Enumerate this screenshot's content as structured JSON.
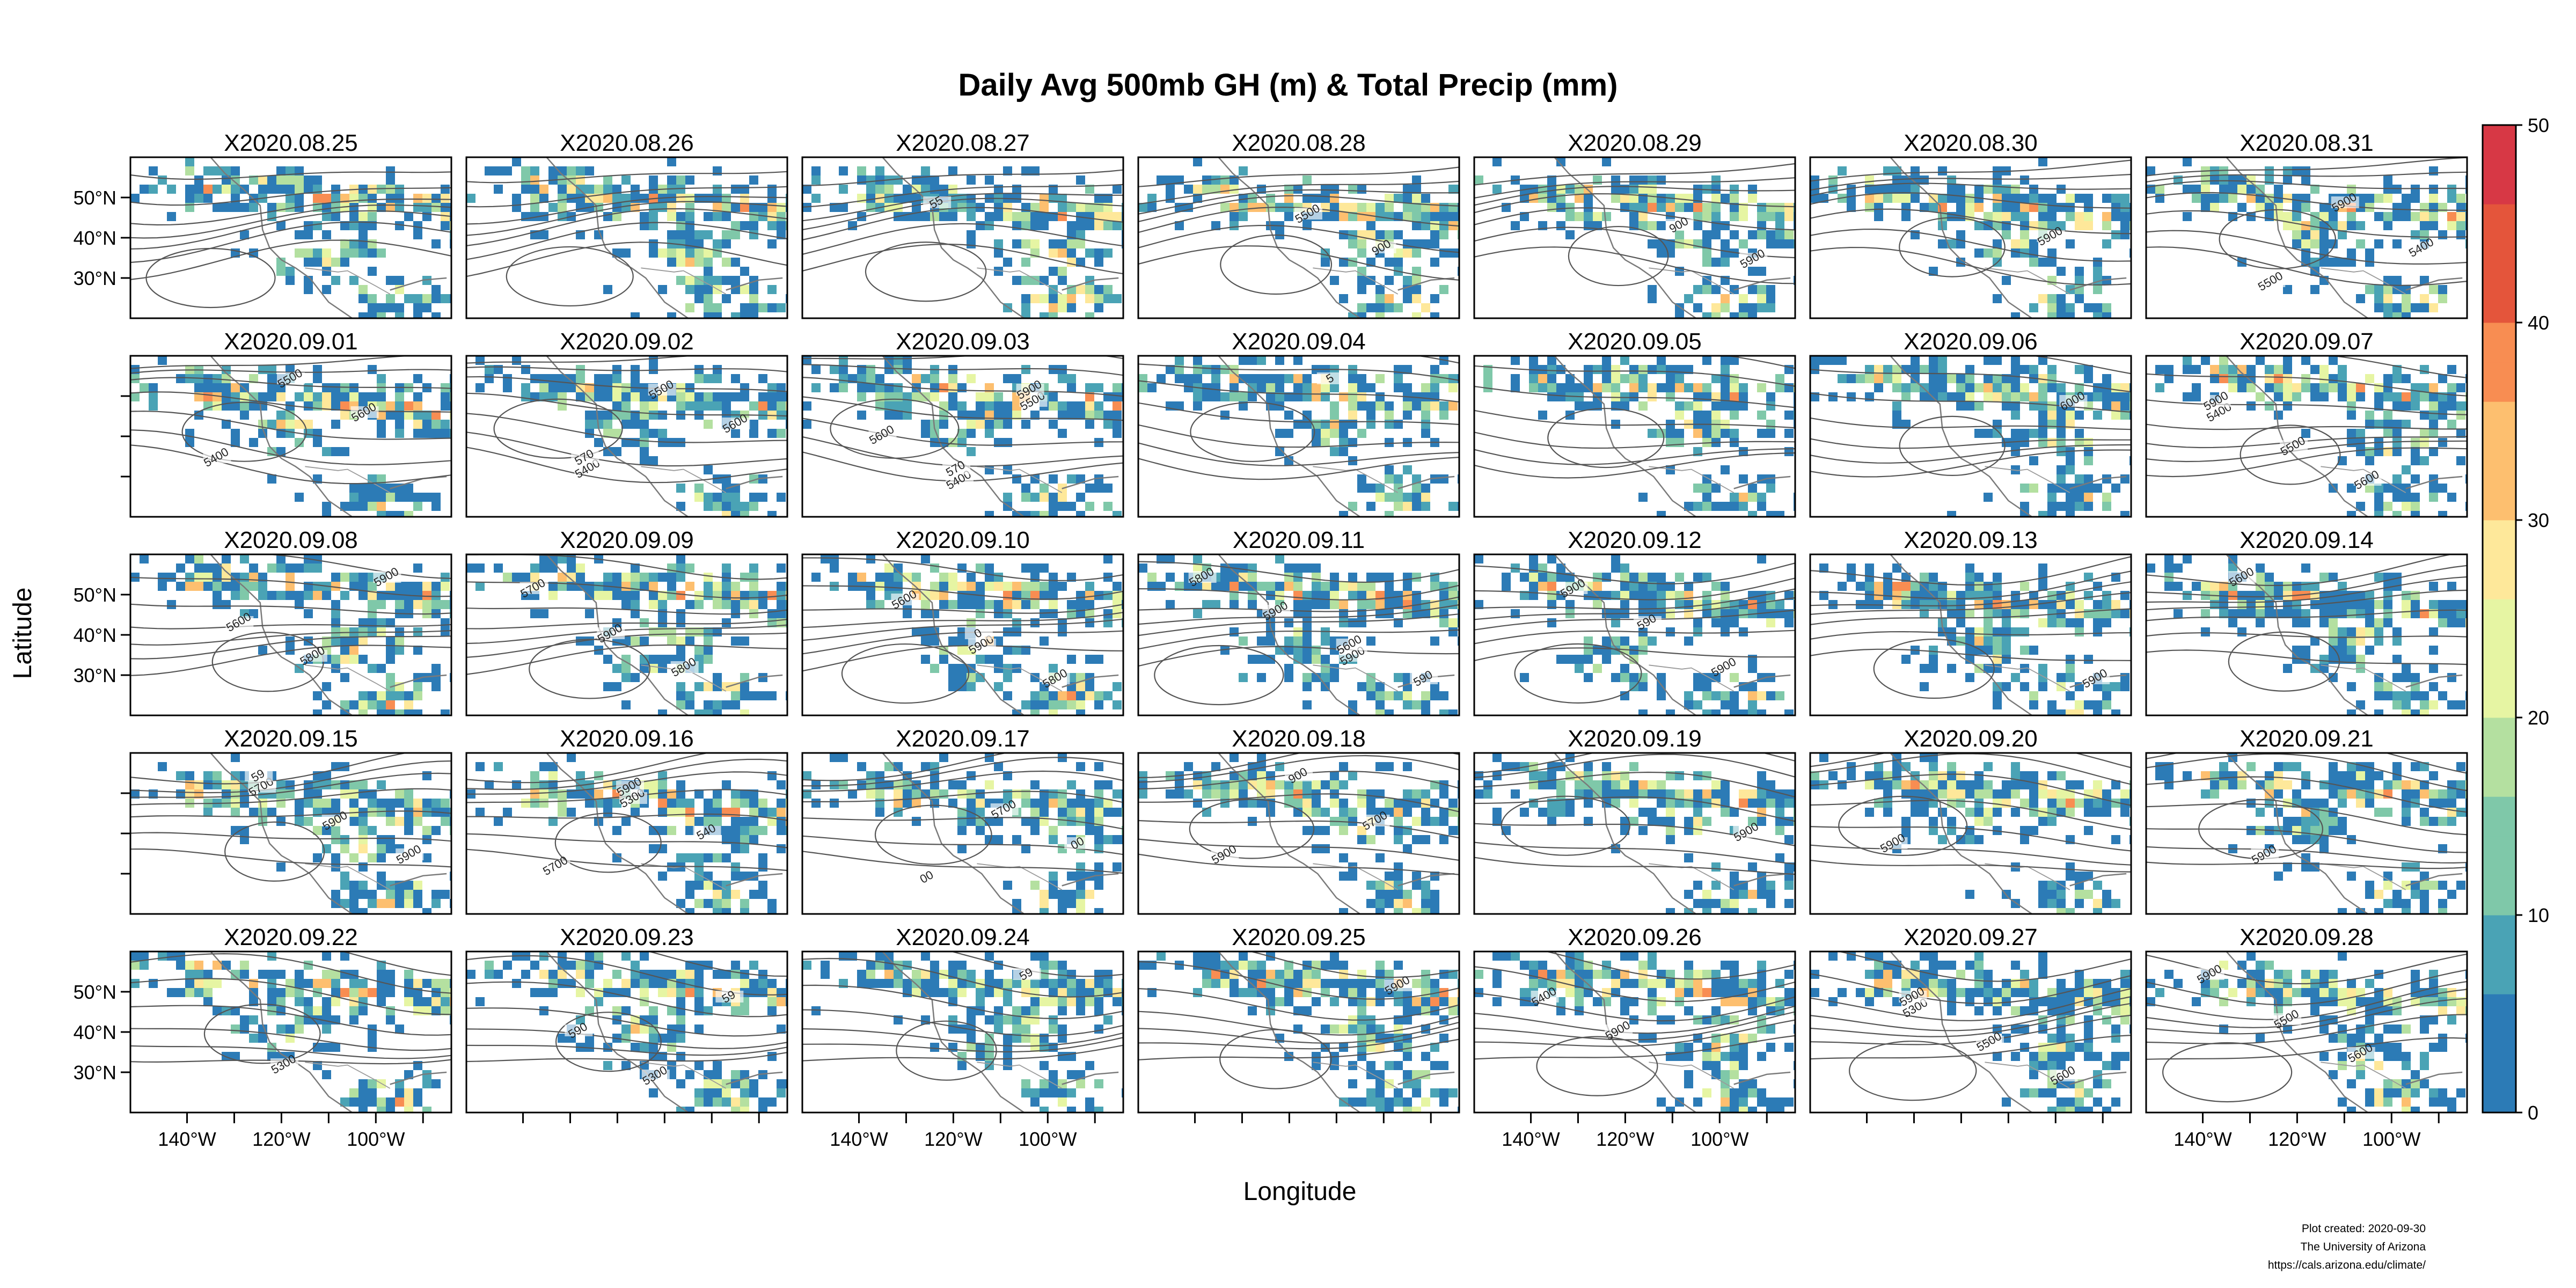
{
  "chart_data": {
    "type": "heatmap",
    "title": "Daily Avg 500mb GH (m) & Total Precip (mm)",
    "xlabel": "Longitude",
    "ylabel": "Latitude",
    "x_ticks": [
      "140°W",
      "120°W",
      "100°W"
    ],
    "y_ticks": [
      "50°N",
      "40°N",
      "30°N"
    ],
    "layout": {
      "rows": 5,
      "cols": 7
    },
    "lon_range": [
      -152,
      -84
    ],
    "lat_range": [
      20,
      60
    ],
    "colorbar": {
      "min": 0,
      "max": 50,
      "ticks": [
        "0",
        "10",
        "20",
        "30",
        "40",
        "50"
      ],
      "colors": [
        "#2c7bb6",
        "#4aa3b5",
        "#7fc8a9",
        "#b4e0a0",
        "#e6f5a3",
        "#fee89a",
        "#fdbf6f",
        "#f88d52",
        "#e4553b",
        "#d73845"
      ]
    },
    "panels": [
      {
        "label": "X2020.08.25",
        "contour_labels": []
      },
      {
        "label": "X2020.08.26",
        "contour_labels": []
      },
      {
        "label": "X2020.08.27",
        "contour_labels": [
          "55"
        ]
      },
      {
        "label": "X2020.08.28",
        "contour_labels": [
          "5500",
          "900"
        ]
      },
      {
        "label": "X2020.08.29",
        "contour_labels": [
          "900",
          "5900"
        ]
      },
      {
        "label": "X2020.08.30",
        "contour_labels": [
          "5900"
        ]
      },
      {
        "label": "X2020.08.31",
        "contour_labels": [
          "5400",
          "5500",
          "5900"
        ]
      },
      {
        "label": "X2020.09.01",
        "contour_labels": [
          "5400",
          "5500",
          "5600"
        ]
      },
      {
        "label": "X2020.09.02",
        "contour_labels": [
          "5400",
          "5500",
          "5600",
          "570"
        ]
      },
      {
        "label": "X2020.09.03",
        "contour_labels": [
          "5400",
          "5500",
          "5600",
          "570",
          "5900"
        ]
      },
      {
        "label": "X2020.09.04",
        "contour_labels": [
          "5"
        ]
      },
      {
        "label": "X2020.09.05",
        "contour_labels": []
      },
      {
        "label": "X2020.09.06",
        "contour_labels": [
          "6000"
        ]
      },
      {
        "label": "X2020.09.07",
        "contour_labels": [
          "5400",
          "5500",
          "5600",
          "5900"
        ]
      },
      {
        "label": "X2020.09.08",
        "contour_labels": [
          "5600",
          "5800",
          "5900"
        ]
      },
      {
        "label": "X2020.09.09",
        "contour_labels": [
          "5900",
          "5800",
          "5700"
        ]
      },
      {
        "label": "X2020.09.10",
        "contour_labels": [
          "5900",
          "5800",
          "5600",
          "0"
        ]
      },
      {
        "label": "X2020.09.11",
        "contour_labels": [
          "5900",
          "5800",
          "5900",
          "5600",
          "590"
        ]
      },
      {
        "label": "X2020.09.12",
        "contour_labels": [
          "5900",
          "5900",
          "590"
        ]
      },
      {
        "label": "X2020.09.13",
        "contour_labels": [
          "5900"
        ]
      },
      {
        "label": "X2020.09.14",
        "contour_labels": [
          "5600"
        ]
      },
      {
        "label": "X2020.09.15",
        "contour_labels": [
          "5700",
          "5900",
          "5900",
          "59"
        ]
      },
      {
        "label": "X2020.09.16",
        "contour_labels": [
          "5300",
          "540",
          "5700",
          "5900"
        ]
      },
      {
        "label": "X2020.09.17",
        "contour_labels": [
          "5700",
          "00",
          "00"
        ]
      },
      {
        "label": "X2020.09.18",
        "contour_labels": [
          "5700",
          "5900",
          "900"
        ]
      },
      {
        "label": "X2020.09.19",
        "contour_labels": [
          "5900"
        ]
      },
      {
        "label": "X2020.09.20",
        "contour_labels": [
          "5900"
        ]
      },
      {
        "label": "X2020.09.21",
        "contour_labels": [
          "5900"
        ]
      },
      {
        "label": "X2020.09.22",
        "contour_labels": [
          "5300"
        ]
      },
      {
        "label": "X2020.09.23",
        "contour_labels": [
          "5300",
          "59",
          "590"
        ]
      },
      {
        "label": "X2020.09.24",
        "contour_labels": [
          "59"
        ]
      },
      {
        "label": "X2020.09.25",
        "contour_labels": [
          "5900"
        ]
      },
      {
        "label": "X2020.09.26",
        "contour_labels": [
          "5400",
          "5900"
        ]
      },
      {
        "label": "X2020.09.27",
        "contour_labels": [
          "5300",
          "5500",
          "5600",
          "5900"
        ]
      },
      {
        "label": "X2020.09.28",
        "contour_labels": [
          "5500",
          "5600",
          "5900"
        ]
      }
    ]
  },
  "footer": {
    "line1": "Plot created: 2020-09-30",
    "line2": "The University of Arizona",
    "line3": "https://cals.arizona.edu/climate/"
  }
}
